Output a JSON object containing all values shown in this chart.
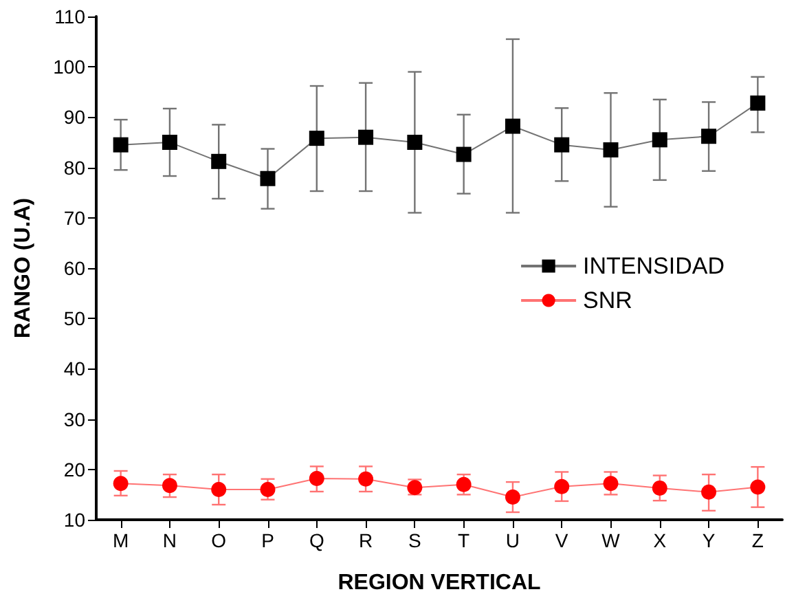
{
  "chart_data": {
    "type": "line",
    "xlabel": "REGION VERTICAL",
    "ylabel": "RANGO (U.A)",
    "categories": [
      "M",
      "N",
      "O",
      "P",
      "Q",
      "R",
      "S",
      "T",
      "U",
      "V",
      "W",
      "X",
      "Y",
      "Z"
    ],
    "series": [
      {
        "name": "INTENSIDAD",
        "color": "#000000",
        "marker": "square",
        "values": [
          84.5,
          85,
          81.2,
          77.8,
          85.8,
          86,
          85,
          82.6,
          88.2,
          84.5,
          83.5,
          85.5,
          86.2,
          92.8
        ],
        "errors": [
          [
            79.5,
            89.5
          ],
          [
            78.3,
            91.7
          ],
          [
            73.8,
            88.5
          ],
          [
            71.8,
            83.7
          ],
          [
            75.3,
            96.2
          ],
          [
            75.3,
            96.8
          ],
          [
            71,
            99
          ],
          [
            74.8,
            90.5
          ],
          [
            71,
            105.5
          ],
          [
            77.3,
            91.8
          ],
          [
            72.2,
            94.8
          ],
          [
            77.5,
            93.5
          ],
          [
            79.3,
            93
          ],
          [
            87,
            98
          ]
        ]
      },
      {
        "name": "SNR",
        "color": "#ff0000",
        "marker": "circle",
        "values": [
          17.2,
          16.8,
          16,
          16,
          18.2,
          18.1,
          16.4,
          17,
          14.5,
          16.6,
          17.2,
          16.3,
          15.5,
          16.5
        ],
        "errors": [
          [
            14.8,
            19.7
          ],
          [
            14.5,
            19
          ],
          [
            13,
            19
          ],
          [
            14,
            18.1
          ],
          [
            15.6,
            20.6
          ],
          [
            15.6,
            20.6
          ],
          [
            15,
            18
          ],
          [
            15,
            19
          ],
          [
            11.5,
            17.5
          ],
          [
            13.7,
            19.5
          ],
          [
            15,
            19.5
          ],
          [
            13.8,
            18.8
          ],
          [
            11.8,
            19
          ],
          [
            12.5,
            20.5
          ]
        ]
      }
    ],
    "ylim": [
      10,
      110
    ],
    "yticks": [
      10,
      20,
      30,
      40,
      50,
      60,
      70,
      80,
      90,
      100,
      110
    ],
    "grid": false,
    "legend": "right",
    "line_style": "solid"
  }
}
